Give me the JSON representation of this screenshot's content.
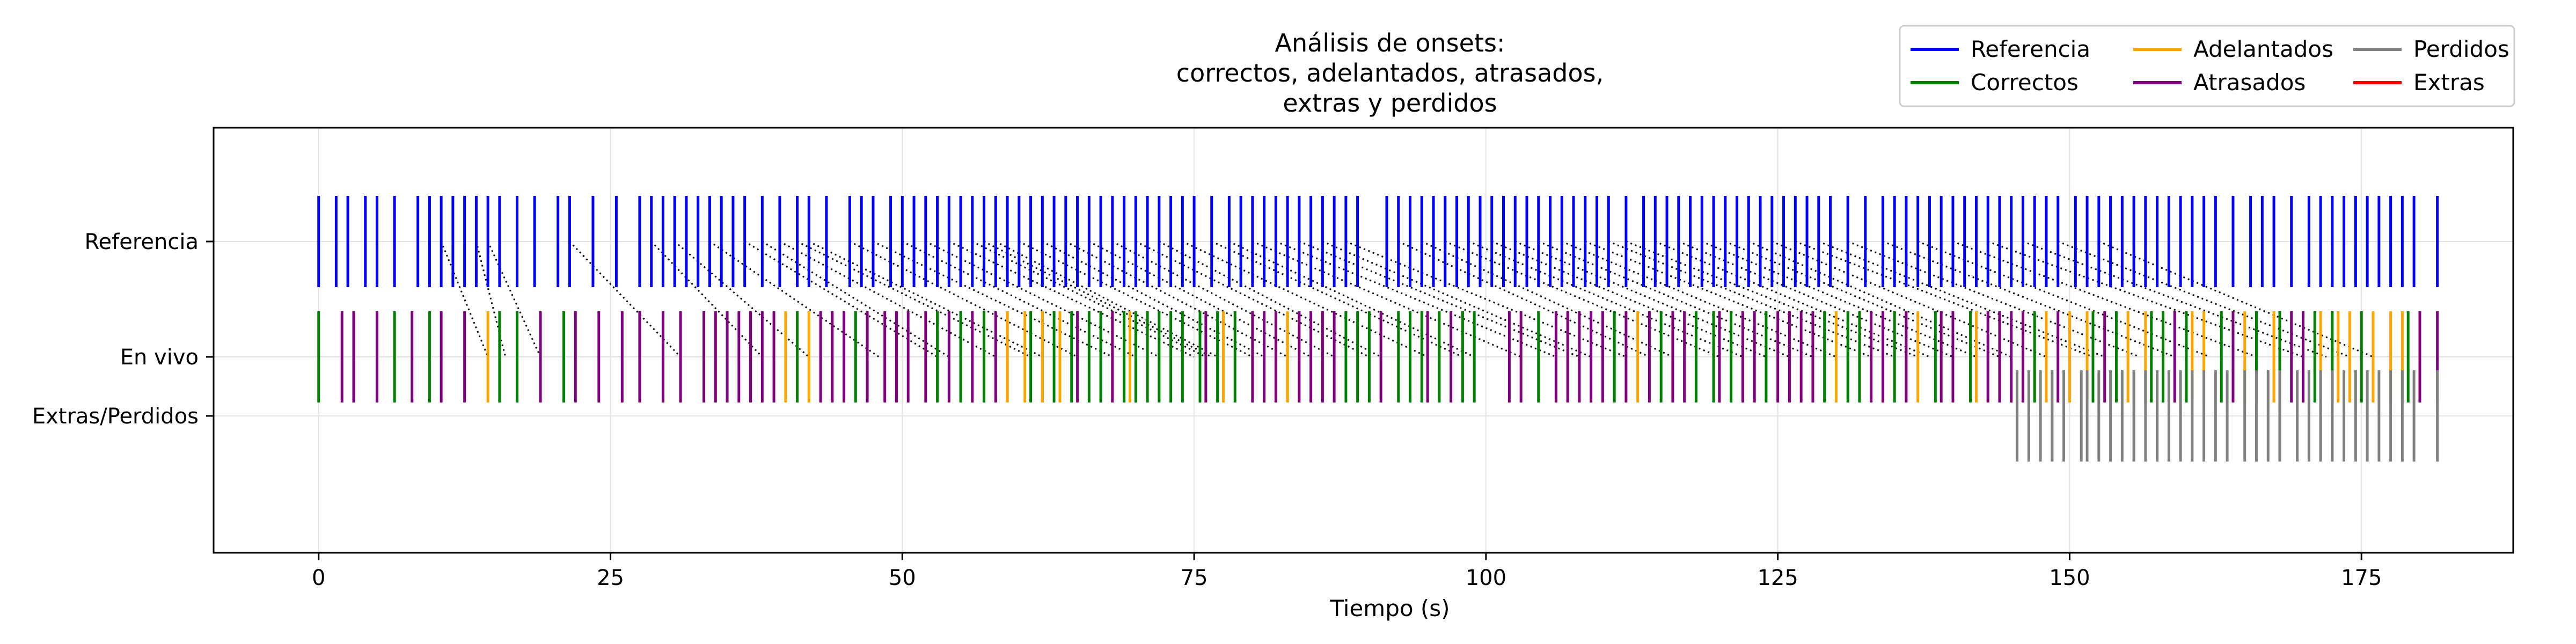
{
  "chart_data": {
    "type": "event-plot",
    "title": [
      "Análisis de onsets:",
      "correctos, adelantados, atrasados,",
      "extras y perdidos"
    ],
    "xlabel": "Tiempo (s)",
    "ylabel": "",
    "xlim": [
      -9,
      188
    ],
    "xticks": [
      0,
      25,
      50,
      75,
      100,
      125,
      150,
      175
    ],
    "rows": [
      "Referencia",
      "En vivo",
      "Extras/Perdidos"
    ],
    "grid": true,
    "legend": {
      "placement": "top-right",
      "entries": [
        {
          "label": "Referencia",
          "color": "#0000ff"
        },
        {
          "label": "Correctos",
          "color": "#008000"
        },
        {
          "label": "Adelantados",
          "color": "#ffa500"
        },
        {
          "label": "Atrasados",
          "color": "#800080"
        },
        {
          "label": "Perdidos",
          "color": "#808080"
        },
        {
          "label": "Extras",
          "color": "#ff0000"
        }
      ]
    },
    "reference_onsets": [
      0,
      1.5,
      2.5,
      4,
      5,
      6.5,
      8.5,
      9.5,
      10.5,
      11.5,
      12.5,
      13.5,
      14.5,
      15.5,
      17,
      18.5,
      20.5,
      21.5,
      23.5,
      25.5,
      27.5,
      28.5,
      29.5,
      30.5,
      31.5,
      32.5,
      33.5,
      34.5,
      35.5,
      36.5,
      38,
      39.5,
      41,
      42,
      43.5,
      45.5,
      46.5,
      47.5,
      49,
      50,
      51,
      52,
      53,
      54,
      55,
      56,
      57,
      58,
      59,
      60,
      61,
      62,
      63,
      64,
      65,
      66,
      67,
      68,
      69,
      70,
      71,
      72,
      73,
      74,
      75,
      76.5,
      78,
      79,
      80,
      81,
      82,
      83,
      84,
      85,
      86,
      87,
      88,
      89,
      91.5,
      92.5,
      93.5,
      94.5,
      95.5,
      96.5,
      97.5,
      98.5,
      99.5,
      100.5,
      101.5,
      102.5,
      103.5,
      104.5,
      105.5,
      106.5,
      107.5,
      108.5,
      109.5,
      110.5,
      112,
      113.5,
      114.5,
      115.5,
      116.5,
      117.5,
      118.5,
      119.5,
      120.5,
      121.5,
      122.5,
      123.5,
      124.5,
      125.5,
      126.5,
      127.5,
      128.5,
      129.5,
      131,
      132.5,
      134,
      135,
      136,
      137,
      138,
      139,
      140,
      141,
      142,
      143,
      144,
      145,
      146,
      147,
      148,
      149,
      150.5,
      151.5,
      152.5,
      153.5,
      154.5,
      155.5,
      156.5,
      157.5,
      158.5,
      159.5,
      160.5,
      161.5,
      162.5,
      164,
      165.5,
      166.5,
      167.5,
      169,
      170.5,
      171.5,
      172.5,
      173.5,
      174.5,
      175.5,
      176.5,
      177.5,
      178.5,
      179.5,
      181.5
    ],
    "live_correctos": [
      0,
      6.5,
      9.5,
      15.5,
      17,
      21,
      41,
      46,
      53,
      55,
      57,
      59,
      61,
      62,
      63,
      64.5,
      66,
      67,
      69,
      70,
      71,
      72,
      73,
      74,
      75.5,
      77,
      78.5,
      83,
      88,
      89,
      90,
      92.5,
      93.5,
      94.5,
      96,
      98,
      99,
      104.5,
      111,
      115,
      118,
      119.5,
      121,
      124,
      129,
      131,
      132,
      135,
      138.5,
      141.5,
      147,
      152,
      154,
      157,
      158,
      160,
      163,
      166,
      168,
      171,
      172.5,
      175,
      179
    ],
    "live_adelantados": [
      14.5,
      40,
      42,
      59,
      60.5,
      62,
      63.5,
      69.5,
      77.5,
      83,
      113,
      130,
      137,
      142,
      148,
      150,
      151.5,
      155,
      156.5,
      160.5,
      161.5,
      165,
      167.5,
      171.5,
      173,
      174,
      176,
      177.5,
      178.5
    ],
    "live_atrasados": [
      2,
      3,
      5,
      8,
      10.5,
      12.5,
      19,
      22,
      24,
      26,
      27.5,
      29.5,
      31,
      33,
      34,
      35,
      36,
      37,
      38,
      39,
      43,
      44,
      45,
      47,
      48.5,
      49.5,
      50.5,
      52,
      54,
      56,
      58,
      65,
      68,
      76,
      80,
      81,
      82,
      84,
      85,
      86,
      87,
      91,
      95,
      97,
      102,
      103,
      106,
      107,
      108,
      109,
      110,
      112,
      114,
      116,
      117,
      120,
      122,
      123,
      125,
      126,
      127,
      128,
      133,
      134,
      136,
      139,
      140,
      143,
      144,
      145,
      146,
      149,
      153,
      159,
      164,
      169,
      170,
      180,
      181.5
    ],
    "extras": [],
    "perdidos": [
      145.5,
      146.5,
      147.5,
      148.5,
      149.5,
      151,
      151.5,
      152.5,
      153.5,
      154.5,
      155.5,
      156.5,
      157.5,
      158.5,
      159.5,
      160.5,
      161.5,
      162.5,
      163.5,
      165,
      166,
      167,
      168,
      169.5,
      170.5,
      171.5,
      172.5,
      173.5,
      174.5,
      175.5,
      176.5,
      177.5,
      178.5,
      179.5,
      181.5
    ],
    "match_lines": [
      [
        10.5,
        14.5
      ],
      [
        13.5,
        16
      ],
      [
        14.5,
        19
      ],
      [
        21.5,
        31
      ],
      [
        28.5,
        38
      ],
      [
        30.5,
        42
      ],
      [
        33.5,
        48
      ],
      [
        36.5,
        53
      ],
      [
        38,
        54
      ],
      [
        39.5,
        58
      ],
      [
        41,
        61
      ],
      [
        42,
        62
      ],
      [
        45.5,
        65
      ],
      [
        47.5,
        68
      ],
      [
        50,
        70
      ],
      [
        52,
        72
      ],
      [
        54,
        75
      ],
      [
        56,
        76
      ],
      [
        57,
        76.5
      ],
      [
        58,
        77
      ],
      [
        60,
        80
      ],
      [
        62,
        81
      ],
      [
        64,
        83
      ],
      [
        66,
        85
      ],
      [
        68,
        87
      ],
      [
        70,
        90
      ],
      [
        72,
        91
      ],
      [
        74,
        95
      ],
      [
        76.5,
        98
      ],
      [
        78,
        99
      ],
      [
        80,
        103
      ],
      [
        82,
        106
      ],
      [
        84,
        108
      ],
      [
        86,
        109
      ],
      [
        88,
        112
      ],
      [
        92.5,
        114
      ],
      [
        94.5,
        116
      ],
      [
        96.5,
        120
      ],
      [
        98.5,
        122
      ],
      [
        100.5,
        124
      ],
      [
        102.5,
        126
      ],
      [
        104.5,
        128
      ],
      [
        106.5,
        130
      ],
      [
        108.5,
        133
      ],
      [
        110.5,
        135
      ],
      [
        112,
        137
      ],
      [
        114.5,
        138
      ],
      [
        116.5,
        140
      ],
      [
        118.5,
        142
      ],
      [
        120.5,
        144
      ],
      [
        122.5,
        145
      ],
      [
        124.5,
        148
      ],
      [
        126.5,
        152
      ],
      [
        128.5,
        153
      ],
      [
        131,
        156
      ],
      [
        134,
        159
      ],
      [
        137,
        162
      ],
      [
        140,
        166
      ],
      [
        143,
        170
      ],
      [
        146,
        172
      ],
      [
        149,
        174
      ],
      [
        152.5,
        176
      ]
    ]
  }
}
